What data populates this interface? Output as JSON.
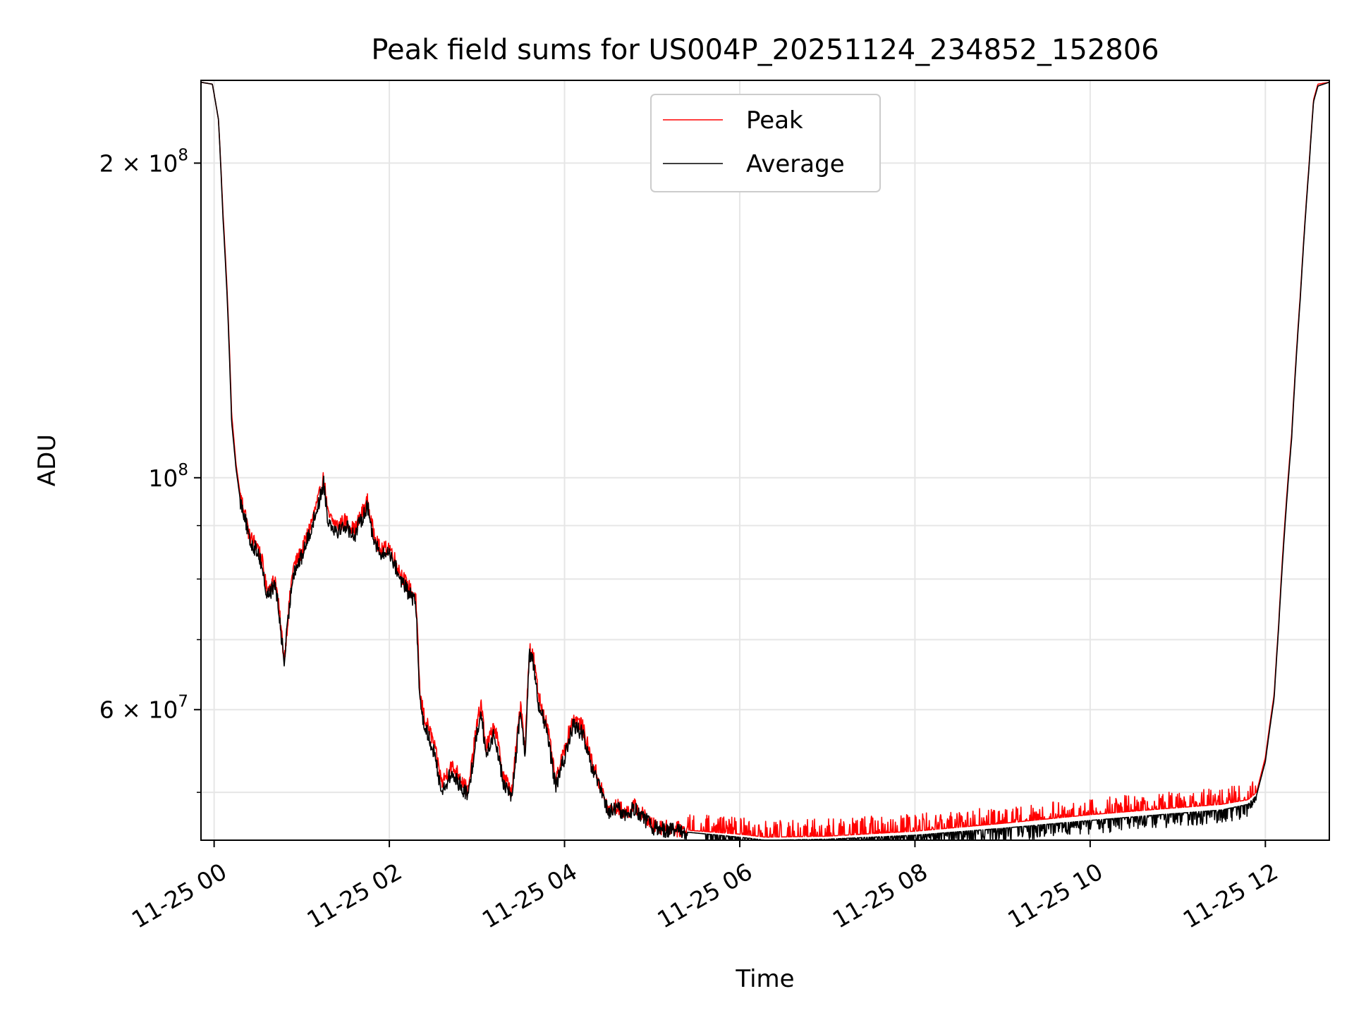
{
  "chart_data": {
    "type": "line",
    "title": "Peak field sums for US004P_20251124_234852_152806",
    "xlabel": "Time",
    "ylabel": "ADU",
    "y_scale": "log",
    "ylim": [
      45000000,
      240000000
    ],
    "xlim_hours": [
      -0.15,
      12.73
    ],
    "grid": true,
    "legend_position": "top-center",
    "x_ticks": [
      {
        "hours": 0,
        "label": "11-25 00"
      },
      {
        "hours": 2,
        "label": "11-25 02"
      },
      {
        "hours": 4,
        "label": "11-25 04"
      },
      {
        "hours": 6,
        "label": "11-25 06"
      },
      {
        "hours": 8,
        "label": "11-25 08"
      },
      {
        "hours": 10,
        "label": "11-25 10"
      },
      {
        "hours": 12,
        "label": "11-25 12"
      }
    ],
    "y_major_ticks": [
      {
        "value": 200000000,
        "mantissa": "2 × 10",
        "exp": "8"
      },
      {
        "value": 100000000,
        "mantissa": "10",
        "exp": "8"
      },
      {
        "value": 60000000,
        "mantissa": "6 × 10",
        "exp": "7"
      }
    ],
    "y_minor_ticks": [
      50000000,
      70000000,
      80000000,
      90000000
    ],
    "series": [
      {
        "name": "Peak",
        "color": "#ff0000",
        "noise_band_start_hours": 5.4,
        "noise_band_end_hours": 11.9,
        "noise_band_max_above_average": 1800000,
        "points": [
          [
            -0.15,
            239000000
          ],
          [
            -0.02,
            238000000
          ],
          [
            0.05,
            220000000
          ],
          [
            0.1,
            180000000
          ],
          [
            0.15,
            150000000
          ],
          [
            0.2,
            115000000
          ],
          [
            0.25,
            103000000
          ],
          [
            0.3,
            96000000
          ],
          [
            0.35,
            93000000
          ],
          [
            0.4,
            88000000
          ],
          [
            0.5,
            86000000
          ],
          [
            0.55,
            83000000
          ],
          [
            0.6,
            78000000
          ],
          [
            0.7,
            80000000
          ],
          [
            0.8,
            67000000
          ],
          [
            0.9,
            82000000
          ],
          [
            1.0,
            85000000
          ],
          [
            1.1,
            90000000
          ],
          [
            1.2,
            96000000
          ],
          [
            1.25,
            100000000
          ],
          [
            1.3,
            92000000
          ],
          [
            1.4,
            90000000
          ],
          [
            1.5,
            91000000
          ],
          [
            1.6,
            89000000
          ],
          [
            1.7,
            93000000
          ],
          [
            1.75,
            95000000
          ],
          [
            1.8,
            90000000
          ],
          [
            1.9,
            85000000
          ],
          [
            2.0,
            86000000
          ],
          [
            2.1,
            82000000
          ],
          [
            2.2,
            79000000
          ],
          [
            2.3,
            77000000
          ],
          [
            2.35,
            62000000
          ],
          [
            2.4,
            59000000
          ],
          [
            2.5,
            56000000
          ],
          [
            2.6,
            51000000
          ],
          [
            2.7,
            53000000
          ],
          [
            2.8,
            52000000
          ],
          [
            2.9,
            50000000
          ],
          [
            3.0,
            58000000
          ],
          [
            3.05,
            61000000
          ],
          [
            3.1,
            55000000
          ],
          [
            3.2,
            58000000
          ],
          [
            3.3,
            52000000
          ],
          [
            3.4,
            50000000
          ],
          [
            3.5,
            61000000
          ],
          [
            3.55,
            55000000
          ],
          [
            3.6,
            69000000
          ],
          [
            3.65,
            67000000
          ],
          [
            3.7,
            62000000
          ],
          [
            3.8,
            58000000
          ],
          [
            3.9,
            51000000
          ],
          [
            4.0,
            55000000
          ],
          [
            4.1,
            59000000
          ],
          [
            4.2,
            58000000
          ],
          [
            4.3,
            54000000
          ],
          [
            4.4,
            51000000
          ],
          [
            4.5,
            48000000
          ],
          [
            4.6,
            48500000
          ],
          [
            4.7,
            47800000
          ],
          [
            4.8,
            48500000
          ],
          [
            5.0,
            46500000
          ],
          [
            5.2,
            46200000
          ],
          [
            5.4,
            46000000
          ],
          [
            6.0,
            45600000
          ],
          [
            6.3,
            45300000
          ],
          [
            7.0,
            45400000
          ],
          [
            8.0,
            45900000
          ],
          [
            9.0,
            46700000
          ],
          [
            10.0,
            47600000
          ],
          [
            10.8,
            48200000
          ],
          [
            11.5,
            48700000
          ],
          [
            11.8,
            49200000
          ],
          [
            11.9,
            50000000
          ],
          [
            12.0,
            54000000
          ],
          [
            12.1,
            62000000
          ],
          [
            12.15,
            72000000
          ],
          [
            12.2,
            85000000
          ],
          [
            12.3,
            110000000
          ],
          [
            12.4,
            150000000
          ],
          [
            12.5,
            200000000
          ],
          [
            12.55,
            230000000
          ],
          [
            12.6,
            238000000
          ],
          [
            12.73,
            239000000
          ]
        ]
      },
      {
        "name": "Average",
        "color": "#000000",
        "noise_band_start_hours": 5.6,
        "noise_band_end_hours": 11.9,
        "noise_band_max_below_average": 1400000,
        "points": [
          [
            -0.15,
            239000000
          ],
          [
            -0.02,
            238000000
          ],
          [
            0.05,
            220000000
          ],
          [
            0.1,
            178000000
          ],
          [
            0.15,
            148000000
          ],
          [
            0.2,
            113000000
          ],
          [
            0.25,
            102000000
          ],
          [
            0.3,
            95000000
          ],
          [
            0.35,
            92000000
          ],
          [
            0.4,
            87000000
          ],
          [
            0.5,
            85000000
          ],
          [
            0.55,
            82000000
          ],
          [
            0.6,
            77000000
          ],
          [
            0.7,
            79000000
          ],
          [
            0.8,
            66500000
          ],
          [
            0.9,
            81000000
          ],
          [
            1.0,
            84000000
          ],
          [
            1.1,
            89000000
          ],
          [
            1.2,
            95000000
          ],
          [
            1.25,
            99000000
          ],
          [
            1.3,
            91000000
          ],
          [
            1.4,
            89000000
          ],
          [
            1.5,
            90000000
          ],
          [
            1.6,
            88000000
          ],
          [
            1.7,
            92000000
          ],
          [
            1.75,
            94000000
          ],
          [
            1.8,
            89000000
          ],
          [
            1.9,
            84000000
          ],
          [
            2.0,
            85000000
          ],
          [
            2.1,
            81000000
          ],
          [
            2.2,
            78000000
          ],
          [
            2.3,
            76000000
          ],
          [
            2.35,
            61000000
          ],
          [
            2.4,
            58000000
          ],
          [
            2.5,
            55000000
          ],
          [
            2.6,
            50000000
          ],
          [
            2.7,
            52000000
          ],
          [
            2.8,
            51000000
          ],
          [
            2.9,
            49500000
          ],
          [
            3.0,
            57000000
          ],
          [
            3.05,
            60000000
          ],
          [
            3.1,
            54000000
          ],
          [
            3.2,
            57000000
          ],
          [
            3.3,
            51000000
          ],
          [
            3.4,
            49500000
          ],
          [
            3.5,
            60000000
          ],
          [
            3.55,
            54000000
          ],
          [
            3.6,
            68000000
          ],
          [
            3.65,
            66000000
          ],
          [
            3.7,
            61000000
          ],
          [
            3.8,
            57000000
          ],
          [
            3.9,
            50500000
          ],
          [
            4.0,
            54000000
          ],
          [
            4.1,
            58000000
          ],
          [
            4.2,
            57000000
          ],
          [
            4.3,
            53000000
          ],
          [
            4.4,
            50500000
          ],
          [
            4.5,
            47800000
          ],
          [
            4.6,
            48300000
          ],
          [
            4.7,
            47500000
          ],
          [
            4.8,
            48300000
          ],
          [
            5.0,
            46300000
          ],
          [
            5.2,
            46000000
          ],
          [
            5.4,
            45800000
          ],
          [
            6.0,
            45300000
          ],
          [
            6.3,
            45000000
          ],
          [
            7.0,
            45100000
          ],
          [
            8.0,
            45500000
          ],
          [
            9.0,
            46200000
          ],
          [
            10.0,
            47000000
          ],
          [
            10.8,
            47600000
          ],
          [
            11.5,
            48100000
          ],
          [
            11.8,
            48700000
          ],
          [
            11.9,
            49700000
          ],
          [
            12.0,
            53500000
          ],
          [
            12.1,
            61500000
          ],
          [
            12.15,
            71500000
          ],
          [
            12.2,
            84000000
          ],
          [
            12.3,
            109000000
          ],
          [
            12.4,
            149000000
          ],
          [
            12.5,
            199000000
          ],
          [
            12.55,
            229000000
          ],
          [
            12.6,
            237000000
          ],
          [
            12.73,
            239000000
          ]
        ]
      }
    ]
  }
}
